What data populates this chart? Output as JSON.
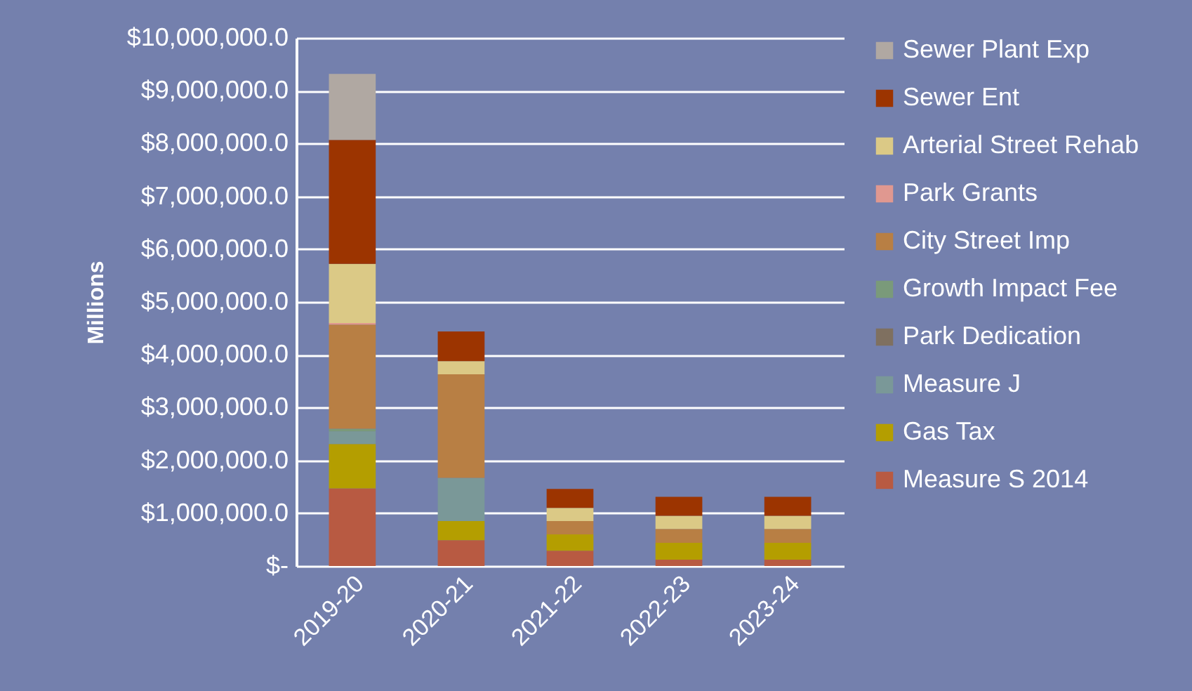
{
  "chart_data": {
    "type": "bar",
    "stacked": true,
    "ylabel": "Millions",
    "categories": [
      "2019-20",
      "2020-21",
      "2021-22",
      "2022-23",
      "2023-24"
    ],
    "series": [
      {
        "name": "Measure S 2014",
        "color": "#b85a42",
        "values": [
          1470000,
          490000,
          290000,
          120000,
          120000
        ]
      },
      {
        "name": "Gas Tax",
        "color": "#b49e00",
        "values": [
          840000,
          360000,
          310000,
          320000,
          320000
        ]
      },
      {
        "name": "Measure J",
        "color": "#7a9898",
        "values": [
          240000,
          820000,
          0,
          0,
          0
        ]
      },
      {
        "name": "Park Dedication",
        "color": "#7f7060",
        "values": [
          0,
          0,
          0,
          0,
          0
        ]
      },
      {
        "name": "Growth Impact Fee",
        "color": "#7a9a7a",
        "values": [
          50000,
          0,
          0,
          0,
          0
        ]
      },
      {
        "name": "City Street Imp",
        "color": "#b87f44",
        "values": [
          1970000,
          1960000,
          250000,
          260000,
          260000
        ]
      },
      {
        "name": "Park Grants",
        "color": "#e09890",
        "values": [
          30000,
          0,
          0,
          0,
          0
        ]
      },
      {
        "name": "Arterial Street Rehab",
        "color": "#dbc986",
        "values": [
          1120000,
          250000,
          250000,
          250000,
          250000
        ]
      },
      {
        "name": "Sewer Ent",
        "color": "#9c3400",
        "values": [
          2350000,
          560000,
          360000,
          360000,
          360000
        ]
      },
      {
        "name": "Sewer Plant Exp",
        "color": "#b0a8a2",
        "values": [
          1250000,
          0,
          0,
          0,
          0
        ]
      }
    ],
    "ylim": [
      0,
      10000000
    ],
    "yticks": [
      {
        "value": 0,
        "label": "$-"
      },
      {
        "value": 1000000,
        "label": "$1,000,000.0"
      },
      {
        "value": 2000000,
        "label": "$2,000,000.0"
      },
      {
        "value": 3000000,
        "label": "$3,000,000.0"
      },
      {
        "value": 4000000,
        "label": "$4,000,000.0"
      },
      {
        "value": 5000000,
        "label": "$5,000,000.0"
      },
      {
        "value": 6000000,
        "label": "$6,000,000.0"
      },
      {
        "value": 7000000,
        "label": "$7,000,000.0"
      },
      {
        "value": 8000000,
        "label": "$8,000,000.0"
      },
      {
        "value": 9000000,
        "label": "$9,000,000.0"
      },
      {
        "value": 10000000,
        "label": "$10,000,000.0"
      }
    ],
    "grid": "y",
    "legend": "right"
  }
}
